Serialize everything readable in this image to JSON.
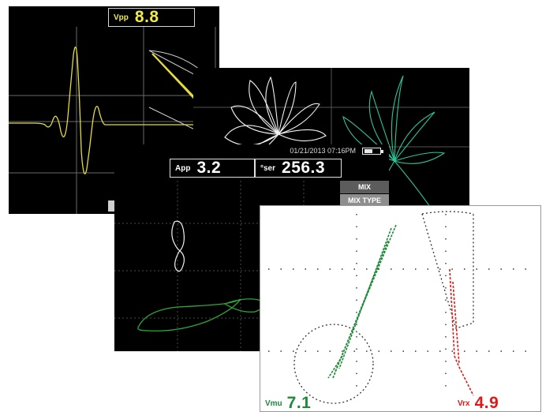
{
  "screens": [
    {
      "id": "s1",
      "readouts": [
        {
          "label": "Vpp",
          "value": "8.8",
          "color": "#f0e94a"
        }
      ],
      "colors": {
        "background": "#000000",
        "signal": "#e6dc3c",
        "grid": "#6a6a6a"
      }
    },
    {
      "id": "s2",
      "colors": {
        "background": "#000000",
        "lobes_primary": "#f2f2f2",
        "lobes_secondary": "#2ec49a"
      }
    },
    {
      "id": "s3",
      "status": {
        "date_time": "01/21/2013  07:16PM",
        "battery_icon": "battery-icon"
      },
      "readouts": [
        {
          "label": "App",
          "value": "3.2",
          "color": "#ffffff"
        },
        {
          "label": "°ser",
          "value": "256.3",
          "color": "#ffffff"
        }
      ],
      "menu": {
        "items": [
          "MIX",
          "MIX TYPE"
        ]
      },
      "colors": {
        "background": "#000000",
        "signal_white": "#f2f2f2",
        "signal_green": "#2ea83a"
      }
    },
    {
      "id": "s4",
      "readouts": [
        {
          "label": "Vmu",
          "value": "7.1",
          "color": "#1f8a3a"
        },
        {
          "label": "Vrx",
          "value": "4.9",
          "color": "#e01818"
        }
      ],
      "colors": {
        "background": "#ffffff",
        "signal_green": "#1f8a3a",
        "signal_red": "#e01818",
        "grid": "#333333"
      }
    }
  ]
}
